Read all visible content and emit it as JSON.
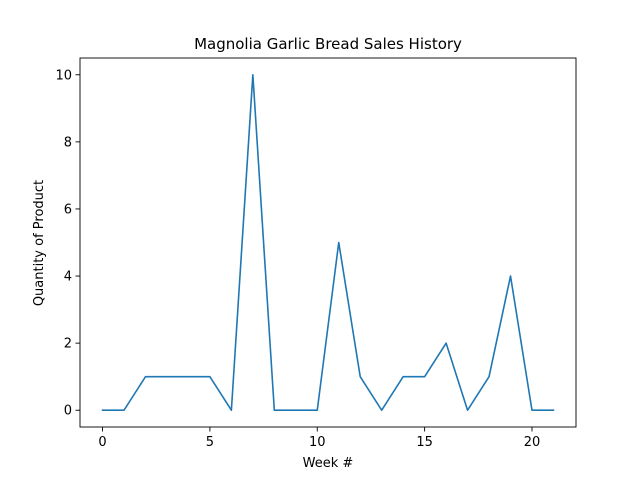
{
  "chart_data": {
    "type": "line",
    "title": "Magnolia Garlic Bread Sales History",
    "xlabel": "Week #",
    "ylabel": "Quantity of Product",
    "xlim": [
      -1.05,
      22.05
    ],
    "ylim": [
      -0.5,
      10.5
    ],
    "xticks": [
      0,
      5,
      10,
      15,
      20
    ],
    "yticks": [
      0,
      2,
      4,
      6,
      8,
      10
    ],
    "grid": false,
    "series": [
      {
        "color": "#1f77b4",
        "x": [
          0,
          1,
          2,
          3,
          4,
          5,
          6,
          7,
          8,
          9,
          10,
          11,
          12,
          13,
          14,
          15,
          16,
          17,
          18,
          19,
          20,
          21
        ],
        "values": [
          0,
          0,
          1,
          1,
          1,
          1,
          0,
          10,
          0,
          0,
          0,
          5,
          1,
          0,
          1,
          1,
          2,
          0,
          1,
          4,
          0,
          0
        ]
      }
    ]
  }
}
